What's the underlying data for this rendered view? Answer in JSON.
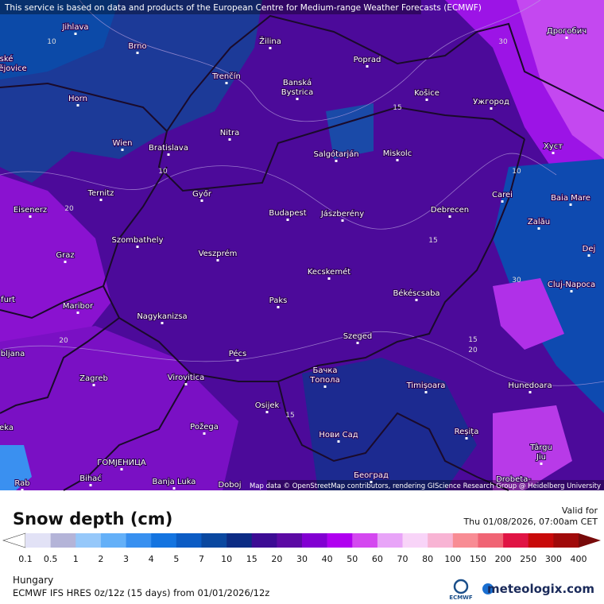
{
  "header": {
    "notice": "This service is based on data and products of the European Centre for Medium-range Weather Forecasts (ECMWF)"
  },
  "map": {
    "attribution": "Map data © OpenStreetMap contributors, rendering GIScience Research Group @ Heidelberg University",
    "places": [
      "Jihlava",
      "ské",
      "ějovice",
      "Brno",
      "Žilina",
      "Poprad",
      "Дрогобич",
      "Trenčín",
      "Banská",
      "Bystrica",
      "Horn",
      "Košice",
      "Ужгород",
      "Nitra",
      "Wien",
      "Bratislava",
      "Salgótarján",
      "Miskolc",
      "Хуст",
      "Ternitz",
      "Győr",
      "Carei",
      "Baia Mare",
      "Eisenerz",
      "Budapest",
      "Jászberény",
      "Debrecen",
      "Zalău",
      "Szombathely",
      "Graz",
      "Veszprém",
      "Dej",
      "Kecskemét",
      "Cluj-Napoca",
      "furt",
      "Paks",
      "Békéscsaba",
      "Maribor",
      "Nagykanizsa",
      "Szeged",
      "bljana",
      "Pécs",
      "Бачка",
      "Топола",
      "Zagreb",
      "Virovitica",
      "Timișoara",
      "Hunedoara",
      "Osijek",
      "eka",
      "Požega",
      "Нови Сад",
      "Reșița",
      "Târgu",
      "Jiu",
      "ГОМЈЕНИЦА",
      "Bihać",
      "Banja Luka",
      "Doboj",
      "Београд",
      "Drobeta-",
      "Rab"
    ],
    "contour_labels": [
      "10",
      "30",
      "15",
      "10",
      "10",
      "20",
      "15",
      "30",
      "20",
      "15",
      "20",
      "15"
    ]
  },
  "legend": {
    "title": "Snow depth (cm)",
    "levels": [
      0.1,
      0.5,
      1,
      2,
      3,
      4,
      5,
      7,
      10,
      15,
      20,
      30,
      40,
      50,
      60,
      70,
      80,
      100,
      150,
      200,
      250,
      300,
      400
    ],
    "colors": [
      "#e2e2f6",
      "#b4b4d8",
      "#96c8fa",
      "#64b0f8",
      "#3890f0",
      "#1474e0",
      "#0c5cc4",
      "#0a48a0",
      "#0c2c84",
      "#3c0c94",
      "#5c0aa4",
      "#8200d2",
      "#b000f0",
      "#d448f0",
      "#e8a4f8",
      "#f8d4f8",
      "#f8b4d4",
      "#f88c94",
      "#f06474",
      "#e01444",
      "#c80a0a",
      "#a00a0a"
    ],
    "over_color": "#780a0a",
    "under_color": "#ffffff",
    "valid_label": "Valid for",
    "valid_time": "Thu 01/08/2026, 07:00am CET"
  },
  "footer": {
    "region": "Hungary",
    "model": "ECMWF IFS HRES 0z/12z (15 days) from 01/01/2026/12z",
    "ecmwf_logo": "ECMWF",
    "brand": "meteologix.com"
  }
}
